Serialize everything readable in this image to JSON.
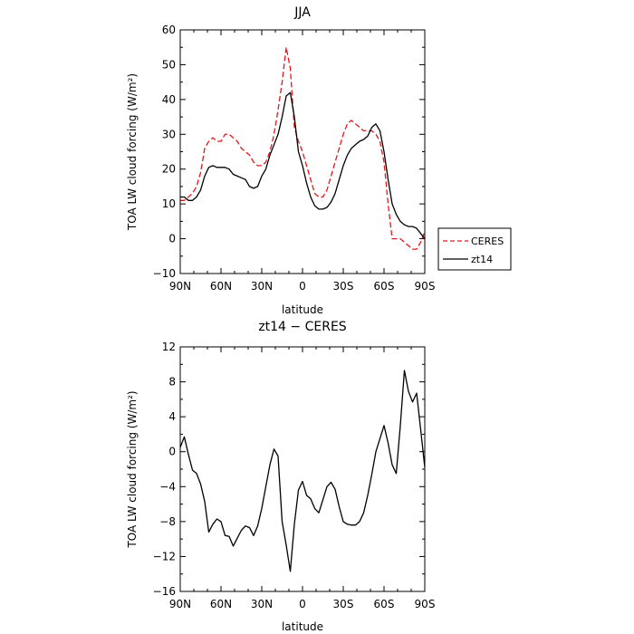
{
  "chart_data": [
    {
      "type": "line",
      "title": "JJA",
      "xlabel": "latitude",
      "ylabel": "TOA LW cloud forcing (W/m²)",
      "xlim": [
        90,
        -90
      ],
      "ylim": [
        -10,
        60
      ],
      "xticks": [
        90,
        60,
        30,
        0,
        -30,
        -60,
        -90
      ],
      "xtick_labels": [
        "90N",
        "60N",
        "30N",
        "0",
        "30S",
        "60S",
        "90S"
      ],
      "yticks": [
        -10,
        0,
        10,
        20,
        30,
        40,
        50,
        60
      ],
      "ytick_labels": [
        "−10",
        "0",
        "10",
        "20",
        "30",
        "40",
        "50",
        "60"
      ],
      "grid": false,
      "legend": "right-outside",
      "series": [
        {
          "name": "CERES",
          "color": "#e8141b",
          "dash": "dashed",
          "x": [
            90,
            87,
            84,
            81,
            78,
            75,
            72,
            69,
            66,
            63,
            60,
            57,
            54,
            51,
            48,
            45,
            42,
            39,
            36,
            33,
            30,
            27,
            24,
            21,
            18,
            15,
            12,
            9,
            6,
            3,
            0,
            -3,
            -6,
            -9,
            -12,
            -15,
            -18,
            -21,
            -24,
            -27,
            -30,
            -33,
            -36,
            -39,
            -42,
            -45,
            -48,
            -51,
            -54,
            -57,
            -60,
            -63,
            -66,
            -69,
            -72,
            -75,
            -78,
            -81,
            -84,
            -87,
            -90
          ],
          "y": [
            11,
            11,
            12,
            13,
            15,
            19,
            26,
            28,
            29,
            28,
            28,
            30,
            30,
            29,
            28,
            26,
            25,
            24,
            22,
            21,
            21,
            22,
            25,
            30,
            37,
            45,
            55,
            49,
            32,
            28,
            25,
            21,
            17,
            13,
            12,
            12,
            14,
            18,
            22,
            26,
            30,
            33,
            34,
            33,
            32,
            31,
            31,
            31,
            30,
            28,
            22,
            10,
            0,
            0,
            0,
            -1,
            -2,
            -3,
            -3,
            -1,
            2
          ]
        },
        {
          "name": "zt14",
          "color": "#000000",
          "dash": "solid",
          "x": [
            90,
            87,
            84,
            81,
            78,
            75,
            72,
            69,
            66,
            63,
            60,
            57,
            54,
            51,
            48,
            45,
            42,
            39,
            36,
            33,
            30,
            27,
            24,
            21,
            18,
            15,
            12,
            9,
            6,
            3,
            0,
            -3,
            -6,
            -9,
            -12,
            -15,
            -18,
            -21,
            -24,
            -27,
            -30,
            -33,
            -36,
            -39,
            -42,
            -45,
            -48,
            -51,
            -54,
            -57,
            -60,
            -63,
            -66,
            -69,
            -72,
            -75,
            -78,
            -81,
            -84,
            -87,
            -90
          ],
          "y": [
            12,
            12,
            11,
            11,
            12,
            14,
            18,
            20.5,
            21,
            20.5,
            20.5,
            20.5,
            20,
            18.5,
            18,
            17.5,
            17,
            15,
            14.5,
            15,
            18,
            20,
            24,
            27,
            30,
            35,
            41,
            42,
            35,
            25,
            21,
            16,
            12,
            9.5,
            8.5,
            8.5,
            9,
            10.5,
            13,
            17,
            21,
            24,
            26,
            27,
            28,
            28.5,
            29.5,
            32,
            33,
            31,
            25,
            17,
            10,
            7,
            5,
            4,
            3.5,
            3.5,
            3,
            1.5,
            0
          ]
        }
      ]
    },
    {
      "type": "line",
      "title": "zt14 − CERES",
      "xlabel": "latitude",
      "ylabel": "TOA LW cloud forcing (W/m²)",
      "xlim": [
        90,
        -90
      ],
      "ylim": [
        -16,
        12
      ],
      "xticks": [
        90,
        60,
        30,
        0,
        -30,
        -60,
        -90
      ],
      "xtick_labels": [
        "90N",
        "60N",
        "30N",
        "0",
        "30S",
        "60S",
        "90S"
      ],
      "yticks": [
        -16,
        -12,
        -8,
        -4,
        0,
        4,
        8,
        12
      ],
      "ytick_labels": [
        "−16",
        "−12",
        "−8",
        "−4",
        "0",
        "4",
        "8",
        "12"
      ],
      "grid": false,
      "series": [
        {
          "color": "#000000",
          "dash": "solid",
          "x": [
            90,
            87,
            84,
            81,
            78,
            75,
            72,
            69,
            66,
            63,
            60,
            57,
            54,
            51,
            48,
            45,
            42,
            39,
            36,
            33,
            30,
            27,
            24,
            21,
            18,
            15,
            12,
            9,
            6,
            3,
            0,
            -3,
            -6,
            -9,
            -12,
            -15,
            -18,
            -21,
            -24,
            -27,
            -30,
            -33,
            -36,
            -39,
            -42,
            -45,
            -48,
            -51,
            -54,
            -57,
            -60,
            -63,
            -66,
            -69,
            -72,
            -75,
            -78,
            -81,
            -84,
            -87,
            -90
          ],
          "y": [
            0.5,
            1.7,
            -0.3,
            -2.1,
            -2.5,
            -3.7,
            -5.7,
            -9.2,
            -8.3,
            -7.7,
            -8,
            -9.6,
            -9.7,
            -10.8,
            -9.9,
            -9,
            -8.5,
            -8.7,
            -9.6,
            -8.5,
            -6.5,
            -4,
            -1.5,
            0.3,
            -0.5,
            -8,
            -10.7,
            -13.7,
            -8.3,
            -4.4,
            -3.4,
            -5,
            -5.4,
            -6.5,
            -7,
            -5.5,
            -4,
            -3.5,
            -4.3,
            -6.3,
            -8,
            -8.3,
            -8.4,
            -8.4,
            -8,
            -7,
            -5,
            -2.6,
            0,
            1.5,
            3,
            1,
            -1.5,
            -2.5,
            3,
            9.3,
            6.9,
            5.7,
            6.7,
            2.5,
            -1.8
          ]
        }
      ]
    }
  ]
}
